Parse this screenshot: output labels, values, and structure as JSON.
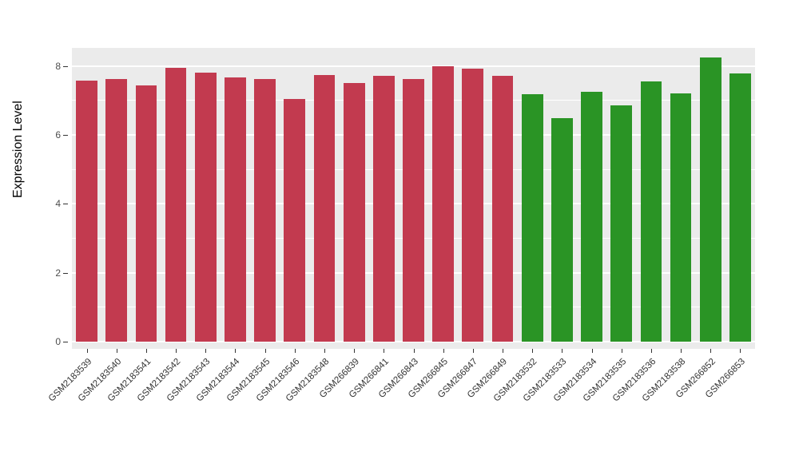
{
  "chart_data": {
    "type": "bar",
    "title": "",
    "xlabel": "",
    "ylabel": "Expression Level",
    "grid": true,
    "legend": "none",
    "plot_background": "#EBEBEB",
    "axis_range": [
      -0.21,
      8.53
    ],
    "yticks": [
      0,
      2,
      4,
      6,
      8
    ],
    "yticks_minor": [
      1,
      3,
      5,
      7
    ],
    "bar_width_fraction": 0.72,
    "colors": {
      "red": "#C23A4F",
      "green": "#2A9425"
    },
    "categories": [
      "GSM2183539",
      "GSM2183540",
      "GSM2183541",
      "GSM2183542",
      "GSM2183543",
      "GSM2183544",
      "GSM2183545",
      "GSM2183546",
      "GSM2183548",
      "GSM266839",
      "GSM266841",
      "GSM266843",
      "GSM266845",
      "GSM266847",
      "GSM266849",
      "GSM2183532",
      "GSM2183533",
      "GSM2183534",
      "GSM2183535",
      "GSM2183536",
      "GSM2183538",
      "GSM266852",
      "GSM266853"
    ],
    "values": [
      7.58,
      7.62,
      7.45,
      7.95,
      7.82,
      7.67,
      7.63,
      7.05,
      7.75,
      7.5,
      7.72,
      7.62,
      8.0,
      7.93,
      7.72,
      7.18,
      6.48,
      7.25,
      6.85,
      7.55,
      7.2,
      8.25,
      7.78
    ],
    "bar_groups": [
      "red",
      "red",
      "red",
      "red",
      "red",
      "red",
      "red",
      "red",
      "red",
      "red",
      "red",
      "red",
      "red",
      "red",
      "red",
      "green",
      "green",
      "green",
      "green",
      "green",
      "green",
      "green",
      "green"
    ]
  }
}
